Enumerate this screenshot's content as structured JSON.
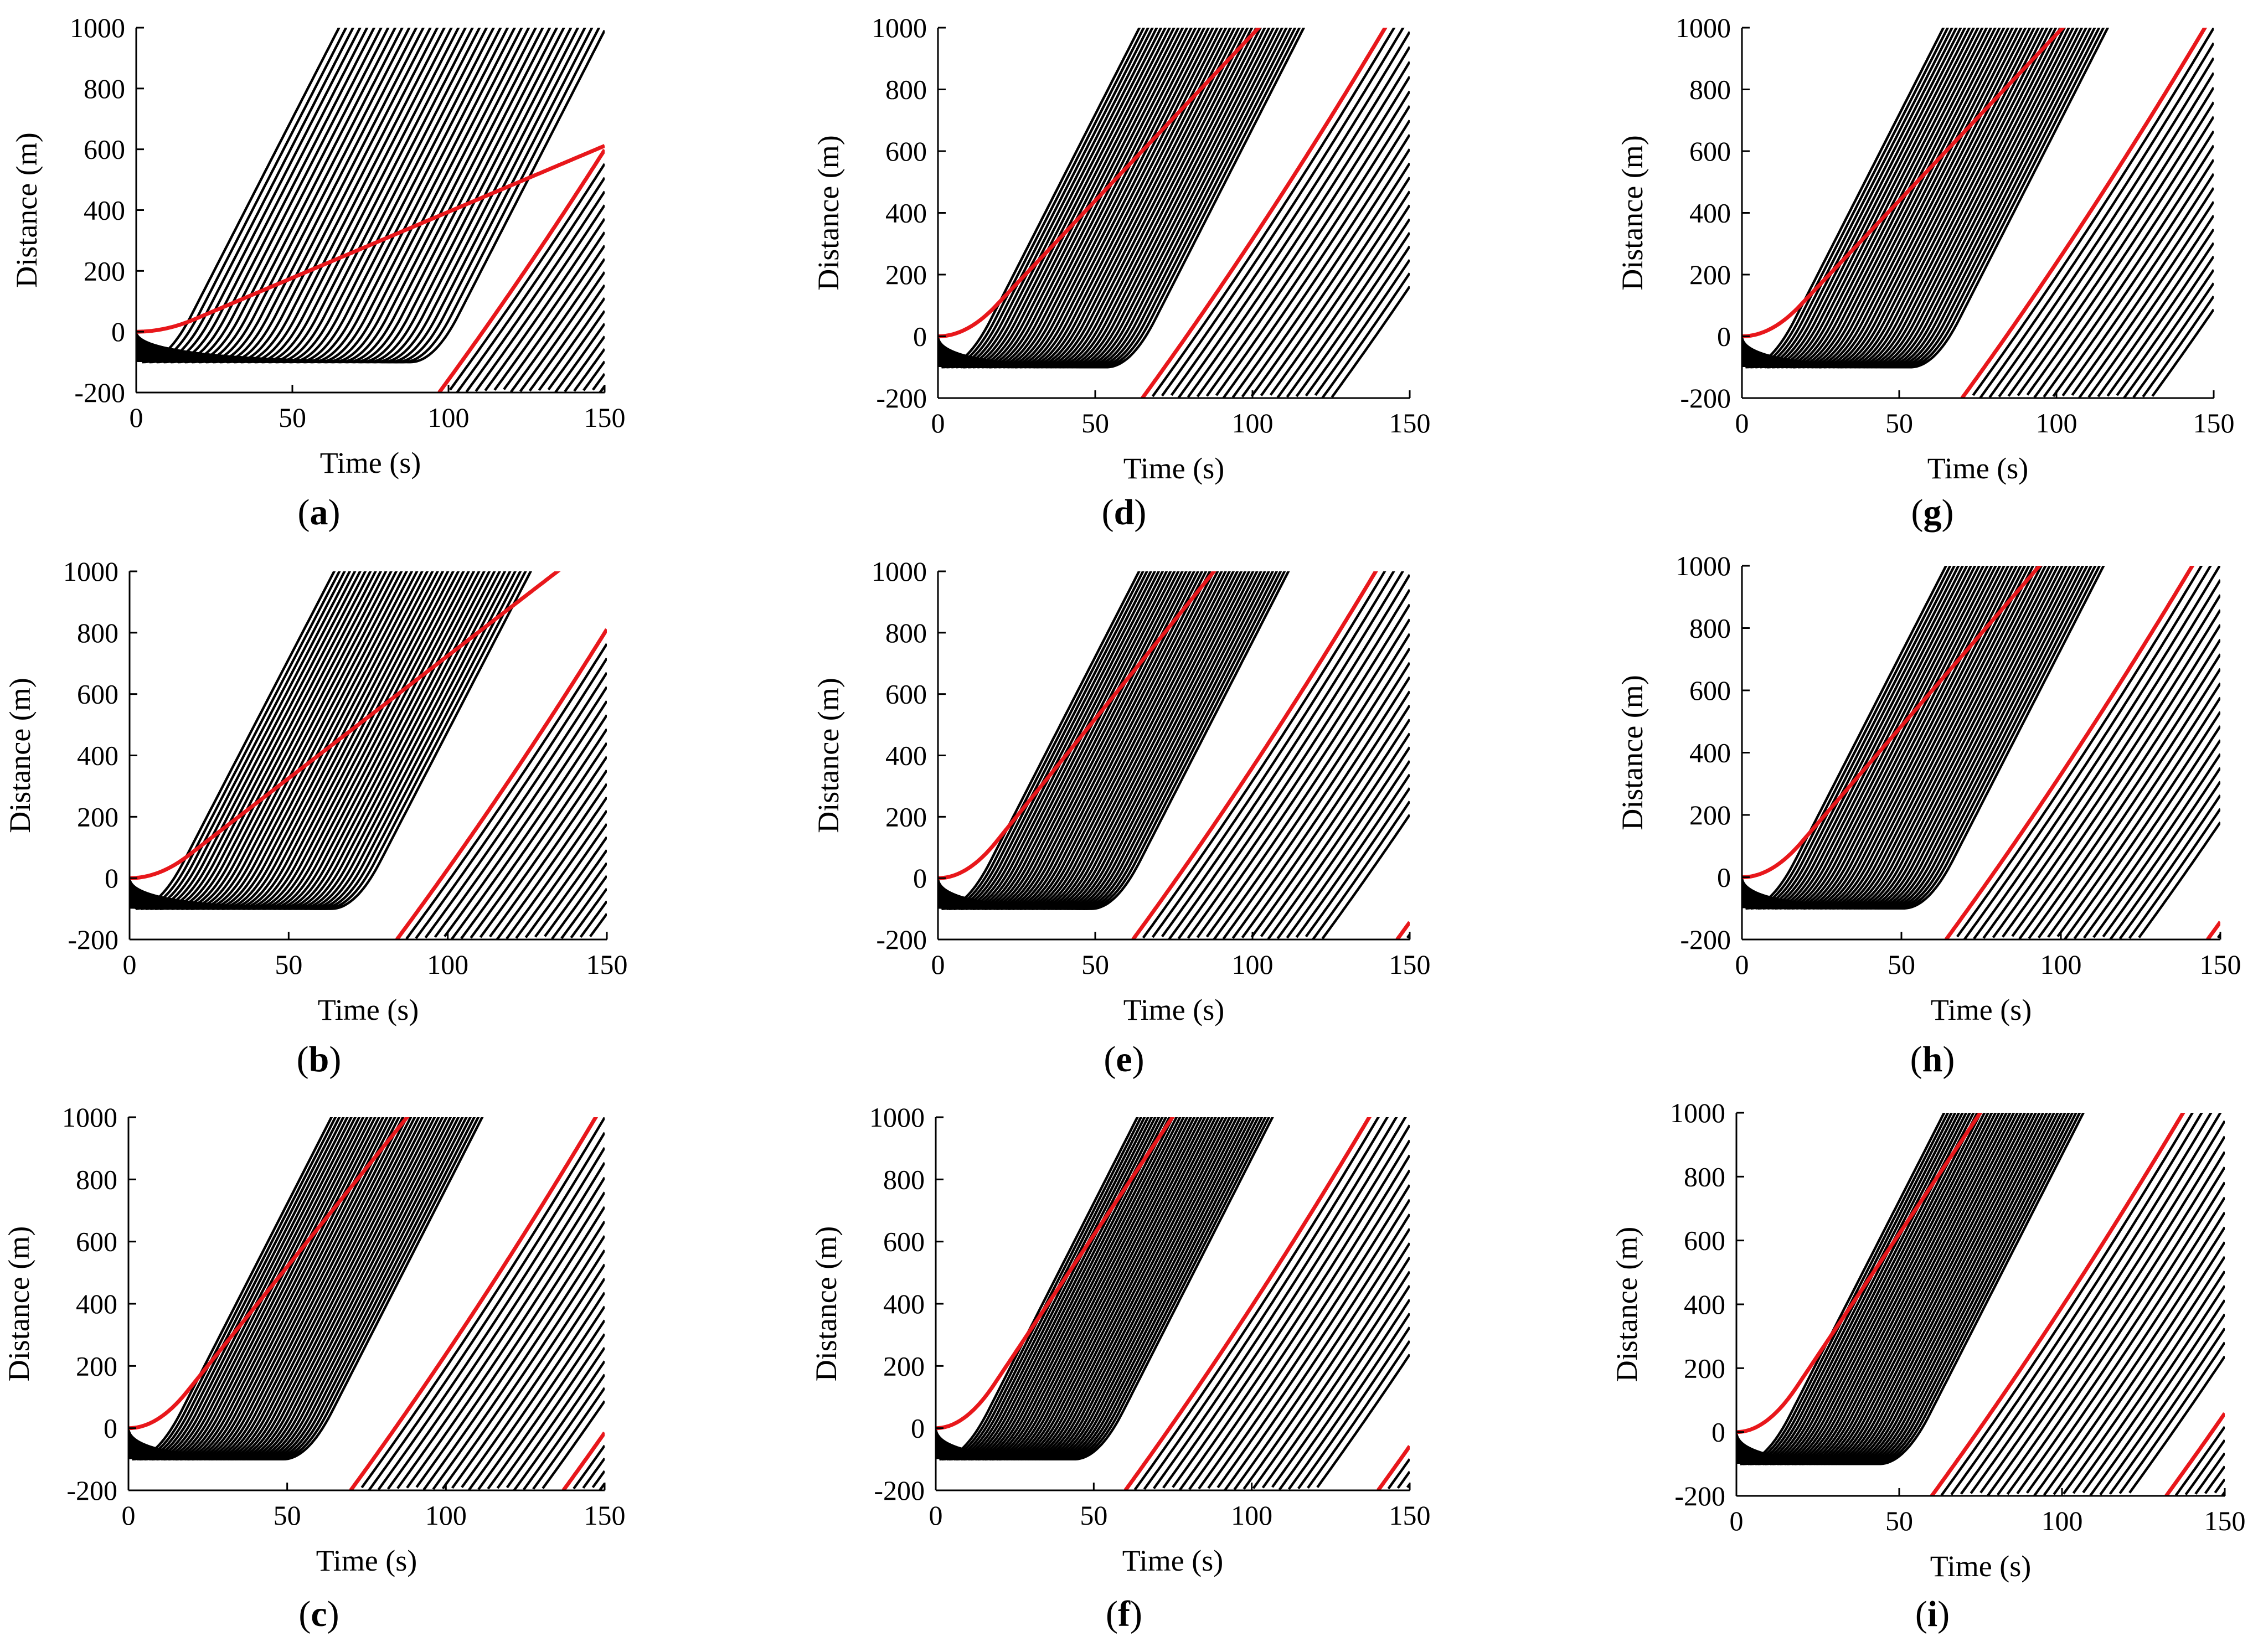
{
  "chart_data": [
    {
      "type": "line",
      "panel_id": "a",
      "caption": "a",
      "xlabel": "Time (s)",
      "ylabel": "Distance (m)",
      "xlim": [
        0,
        150
      ],
      "ylim": [
        -200,
        1000
      ],
      "xticks": [
        "0",
        "50",
        "100",
        "150"
      ],
      "yticks": [
        "-200",
        "0",
        "200",
        "400",
        "600",
        "800",
        "1000"
      ],
      "series": [
        {
          "name": "queue discharge trajectories",
          "color": "#000000",
          "count": 40
        },
        {
          "name": "first vehicle of green phase 1",
          "color": "#e8171b",
          "start_time": 0
        },
        {
          "name": "first vehicle of green phase 2",
          "color": "#e8171b",
          "start_time": 97
        }
      ],
      "discharge_end_time": 90
    },
    {
      "type": "line",
      "panel_id": "b",
      "caption": "b",
      "xlabel": "Time (s)",
      "ylabel": "Distance (m)",
      "xlim": [
        0,
        150
      ],
      "ylim": [
        -200,
        1000
      ],
      "xticks": [
        "0",
        "50",
        "100",
        "150"
      ],
      "yticks": [
        "-200",
        "0",
        "200",
        "400",
        "600",
        "800",
        "1000"
      ],
      "series": [
        {
          "name": "queue discharge trajectories",
          "color": "#000000",
          "count": 40
        },
        {
          "name": "first vehicle of green phase 1",
          "color": "#e8171b",
          "start_time": 0
        },
        {
          "name": "first vehicle of green phase 2",
          "color": "#e8171b",
          "start_time": 84
        }
      ],
      "discharge_end_time": 65
    },
    {
      "type": "line",
      "panel_id": "c",
      "caption": "c",
      "xlabel": "Time (s)",
      "ylabel": "Distance (m)",
      "xlim": [
        0,
        150
      ],
      "ylim": [
        -200,
        1000
      ],
      "xticks": [
        "0",
        "50",
        "100",
        "150"
      ],
      "yticks": [
        "-200",
        "0",
        "200",
        "400",
        "600",
        "800",
        "1000"
      ],
      "series": [
        {
          "name": "queue discharge trajectories",
          "color": "#000000",
          "count": 40
        },
        {
          "name": "first vehicle of green phase 1",
          "color": "#e8171b",
          "start_time": 0
        },
        {
          "name": "first vehicle of green phase 2",
          "color": "#e8171b",
          "start_time": 70
        },
        {
          "name": "first vehicle of green phase 3",
          "color": "#e8171b",
          "start_time": 137
        }
      ],
      "discharge_end_time": 50
    },
    {
      "type": "line",
      "panel_id": "d",
      "caption": "d",
      "xlabel": "Time (s)",
      "ylabel": "Distance (m)",
      "xlim": [
        0,
        150
      ],
      "ylim": [
        -200,
        1000
      ],
      "xticks": [
        "0",
        "50",
        "100",
        "150"
      ],
      "yticks": [
        "-200",
        "0",
        "200",
        "400",
        "600",
        "800",
        "1000"
      ],
      "series": [
        {
          "name": "queue discharge trajectories",
          "color": "#000000",
          "count": 40
        },
        {
          "name": "first vehicle of green phase 1",
          "color": "#e8171b",
          "start_time": 0
        },
        {
          "name": "first vehicle of green phase 2",
          "color": "#e8171b",
          "start_time": 65
        }
      ],
      "discharge_end_time": 55
    },
    {
      "type": "line",
      "panel_id": "e",
      "caption": "e",
      "xlabel": "Time (s)",
      "ylabel": "Distance (m)",
      "xlim": [
        0,
        150
      ],
      "ylim": [
        -200,
        1000
      ],
      "xticks": [
        "0",
        "50",
        "100",
        "150"
      ],
      "yticks": [
        "-200",
        "0",
        "200",
        "400",
        "600",
        "800",
        "1000"
      ],
      "series": [
        {
          "name": "queue discharge trajectories",
          "color": "#000000",
          "count": 40
        },
        {
          "name": "first vehicle of green phase 1",
          "color": "#e8171b",
          "start_time": 0
        },
        {
          "name": "first vehicle of green phase 2",
          "color": "#e8171b",
          "start_time": 62
        },
        {
          "name": "first vehicle of green phase 3",
          "color": "#e8171b",
          "start_time": 146
        }
      ],
      "discharge_end_time": 50
    },
    {
      "type": "line",
      "panel_id": "f",
      "caption": "f",
      "xlabel": "Time (s)",
      "ylabel": "Distance (m)",
      "xlim": [
        0,
        150
      ],
      "ylim": [
        -200,
        1000
      ],
      "xticks": [
        "0",
        "50",
        "100",
        "150"
      ],
      "yticks": [
        "-200",
        "0",
        "200",
        "400",
        "600",
        "800",
        "1000"
      ],
      "series": [
        {
          "name": "queue discharge trajectories",
          "color": "#000000",
          "count": 40
        },
        {
          "name": "first vehicle of green phase 1",
          "color": "#e8171b",
          "start_time": 0
        },
        {
          "name": "first vehicle of green phase 2",
          "color": "#e8171b",
          "start_time": 60
        },
        {
          "name": "first vehicle of green phase 3",
          "color": "#e8171b",
          "start_time": 140
        }
      ],
      "discharge_end_time": 45
    },
    {
      "type": "line",
      "panel_id": "g",
      "caption": "g",
      "xlabel": "Time (s)",
      "ylabel": "Distance (m)",
      "xlim": [
        0,
        150
      ],
      "ylim": [
        -200,
        1000
      ],
      "xticks": [
        "0",
        "50",
        "100",
        "150"
      ],
      "yticks": [
        "-200",
        "0",
        "200",
        "400",
        "600",
        "800",
        "1000"
      ],
      "series": [
        {
          "name": "queue discharge trajectories",
          "color": "#000000",
          "count": 40
        },
        {
          "name": "first vehicle of green phase 1",
          "color": "#e8171b",
          "start_time": 0
        },
        {
          "name": "first vehicle of green phase 2",
          "color": "#e8171b",
          "start_time": 70
        }
      ],
      "discharge_end_time": 55
    },
    {
      "type": "line",
      "panel_id": "h",
      "caption": "h",
      "xlabel": "Time (s)",
      "ylabel": "Distance (m)",
      "xlim": [
        0,
        150
      ],
      "ylim": [
        -200,
        1000
      ],
      "xticks": [
        "0",
        "50",
        "100",
        "150"
      ],
      "yticks": [
        "-200",
        "0",
        "200",
        "400",
        "600",
        "800",
        "1000"
      ],
      "series": [
        {
          "name": "queue discharge trajectories",
          "color": "#000000",
          "count": 40
        },
        {
          "name": "first vehicle of green phase 1",
          "color": "#e8171b",
          "start_time": 0
        },
        {
          "name": "first vehicle of green phase 2",
          "color": "#e8171b",
          "start_time": 64
        },
        {
          "name": "first vehicle of green phase 3",
          "color": "#e8171b",
          "start_time": 146
        }
      ],
      "discharge_end_time": 52
    },
    {
      "type": "line",
      "panel_id": "i",
      "caption": "i",
      "xlabel": "Time (s)",
      "ylabel": "Distance (m)",
      "xlim": [
        0,
        150
      ],
      "ylim": [
        -200,
        1000
      ],
      "xticks": [
        "0",
        "50",
        "100",
        "150"
      ],
      "yticks": [
        "-200",
        "0",
        "200",
        "400",
        "600",
        "800",
        "1000"
      ],
      "series": [
        {
          "name": "queue discharge trajectories",
          "color": "#000000",
          "count": 40
        },
        {
          "name": "first vehicle of green phase 1",
          "color": "#e8171b",
          "start_time": 0
        },
        {
          "name": "first vehicle of green phase 2",
          "color": "#e8171b",
          "start_time": 60
        },
        {
          "name": "first vehicle of green phase 3",
          "color": "#e8171b",
          "start_time": 132
        }
      ],
      "discharge_end_time": 45
    }
  ]
}
